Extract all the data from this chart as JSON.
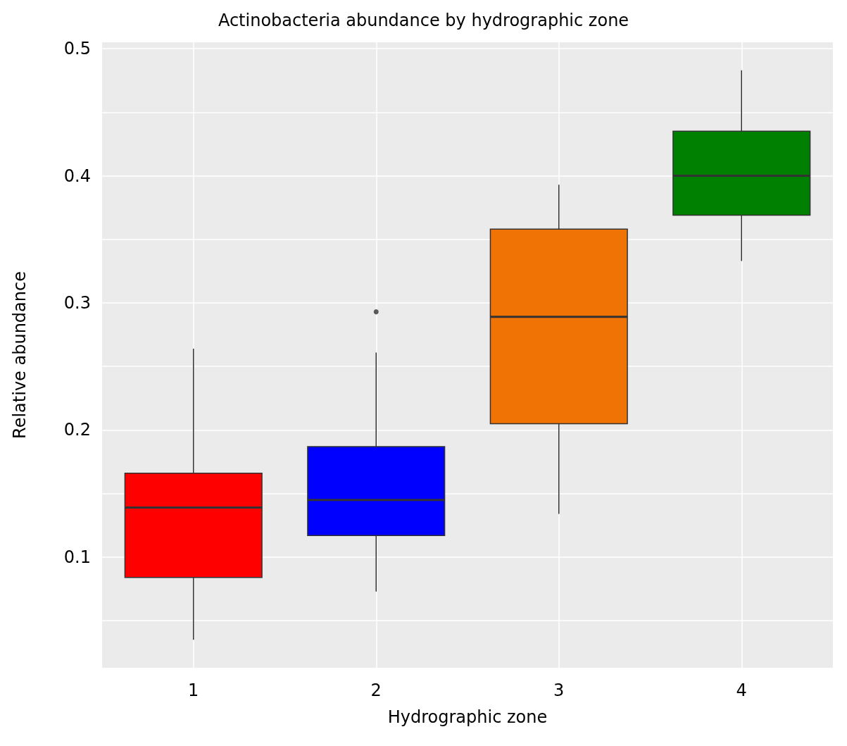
{
  "chart_data": {
    "type": "box",
    "title": "Actinobacteria abundance by hydrographic zone",
    "xlabel": "Hydrographic zone",
    "ylabel": "Relative abundance",
    "categories": [
      "1",
      "2",
      "3",
      "4"
    ],
    "colors": [
      "#ff0000",
      "#0000ff",
      "#f07305",
      "#008000"
    ],
    "boxes": [
      {
        "low": 0.035,
        "q1": 0.084,
        "median": 0.139,
        "q3": 0.166,
        "high": 0.264
      },
      {
        "low": 0.073,
        "q1": 0.117,
        "median": 0.145,
        "q3": 0.187,
        "high": 0.261,
        "outliers": [
          0.293
        ]
      },
      {
        "low": 0.134,
        "q1": 0.205,
        "median": 0.289,
        "q3": 0.358,
        "high": 0.393
      },
      {
        "low": 0.333,
        "q1": 0.369,
        "median": 0.4,
        "q3": 0.435,
        "high": 0.483
      }
    ],
    "ylim": [
      0.013,
      0.505
    ],
    "yticks": [
      {
        "value": 0.05,
        "label": null
      },
      0.1,
      {
        "value": 0.15,
        "label": null
      },
      0.2,
      {
        "value": 0.25,
        "label": null
      },
      0.3,
      {
        "value": 0.35,
        "label": null
      },
      0.4,
      {
        "value": 0.45,
        "label": null
      },
      0.5
    ],
    "grid": true
  }
}
